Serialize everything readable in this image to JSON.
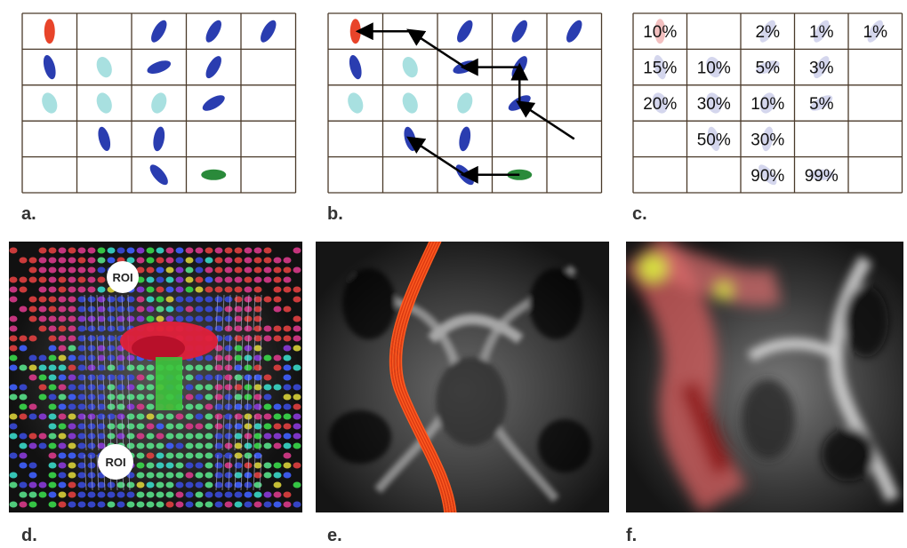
{
  "figure": {
    "panels": [
      {
        "id": "a",
        "label": "a."
      },
      {
        "id": "b",
        "label": "b."
      },
      {
        "id": "c",
        "label": "c."
      },
      {
        "id": "d",
        "label": "d."
      },
      {
        "id": "e",
        "label": "e."
      },
      {
        "id": "f",
        "label": "f."
      }
    ],
    "grid_a": {
      "rows": 5,
      "cols": 5,
      "ellipses": [
        {
          "r": 0,
          "c": 0,
          "color": "#e8442a",
          "angle": 0,
          "shape": "tall"
        },
        {
          "r": 0,
          "c": 2,
          "color": "#2a3db0",
          "angle": 30,
          "shape": "tall"
        },
        {
          "r": 0,
          "c": 3,
          "color": "#2a3db0",
          "angle": 30,
          "shape": "tall"
        },
        {
          "r": 0,
          "c": 4,
          "color": "#2a3db0",
          "angle": 30,
          "shape": "tall"
        },
        {
          "r": 1,
          "c": 0,
          "color": "#2a3db0",
          "angle": -15,
          "shape": "tall"
        },
        {
          "r": 1,
          "c": 1,
          "color": "#a8e0e0",
          "angle": -20,
          "shape": "fat"
        },
        {
          "r": 1,
          "c": 2,
          "color": "#2a3db0",
          "angle": 70,
          "shape": "tall"
        },
        {
          "r": 1,
          "c": 3,
          "color": "#2a3db0",
          "angle": 30,
          "shape": "tall"
        },
        {
          "r": 2,
          "c": 0,
          "color": "#a8e0e0",
          "angle": -20,
          "shape": "fat"
        },
        {
          "r": 2,
          "c": 1,
          "color": "#a8e0e0",
          "angle": -20,
          "shape": "fat"
        },
        {
          "r": 2,
          "c": 2,
          "color": "#a8e0e0",
          "angle": 20,
          "shape": "fat"
        },
        {
          "r": 2,
          "c": 3,
          "color": "#2a3db0",
          "angle": 60,
          "shape": "tall"
        },
        {
          "r": 3,
          "c": 1,
          "color": "#2a3db0",
          "angle": -15,
          "shape": "tall"
        },
        {
          "r": 3,
          "c": 2,
          "color": "#2a3db0",
          "angle": 10,
          "shape": "tall"
        },
        {
          "r": 4,
          "c": 2,
          "color": "#2a3db0",
          "angle": -40,
          "shape": "tall"
        },
        {
          "r": 4,
          "c": 3,
          "color": "#2a8a3a",
          "angle": 90,
          "shape": "tall"
        }
      ]
    },
    "grid_c": {
      "percents": [
        {
          "r": 0,
          "c": 0,
          "text": "10%"
        },
        {
          "r": 0,
          "c": 2,
          "text": "2%"
        },
        {
          "r": 0,
          "c": 3,
          "text": "1%"
        },
        {
          "r": 0,
          "c": 4,
          "text": "1%"
        },
        {
          "r": 1,
          "c": 0,
          "text": "15%"
        },
        {
          "r": 1,
          "c": 1,
          "text": "10%"
        },
        {
          "r": 1,
          "c": 2,
          "text": "5%"
        },
        {
          "r": 1,
          "c": 3,
          "text": "3%"
        },
        {
          "r": 2,
          "c": 0,
          "text": "20%"
        },
        {
          "r": 2,
          "c": 1,
          "text": "30%"
        },
        {
          "r": 2,
          "c": 2,
          "text": "10%"
        },
        {
          "r": 2,
          "c": 3,
          "text": "5%"
        },
        {
          "r": 3,
          "c": 1,
          "text": "50%"
        },
        {
          "r": 3,
          "c": 2,
          "text": "30%"
        },
        {
          "r": 4,
          "c": 2,
          "text": "90%"
        },
        {
          "r": 4,
          "c": 3,
          "text": "99%"
        }
      ]
    },
    "roi": {
      "top": "ROI",
      "bottom": "ROI"
    }
  }
}
